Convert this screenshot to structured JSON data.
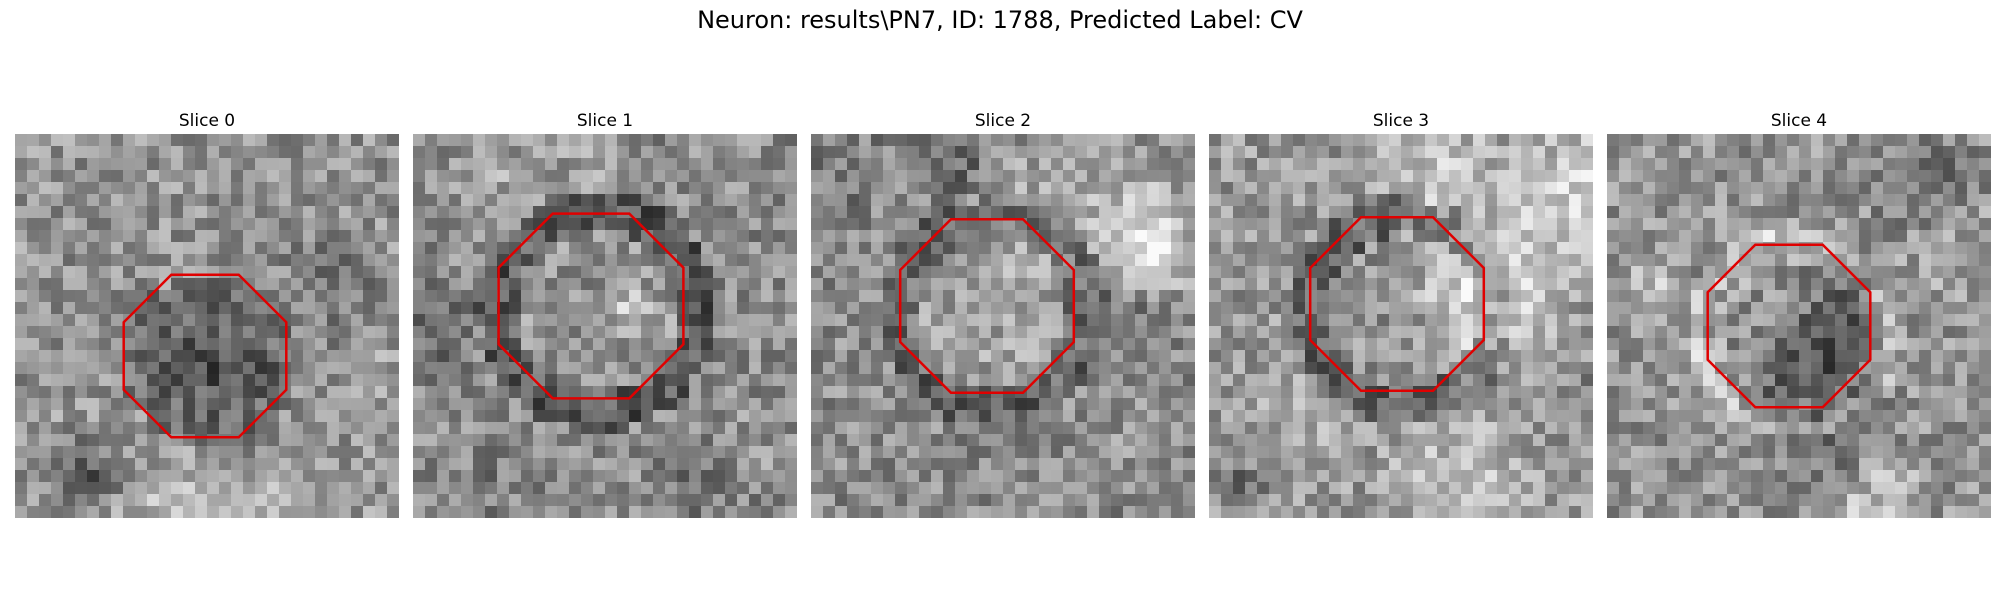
{
  "figure": {
    "title": "Neuron: results\\PN7, ID: 1788, Predicted Label: CV"
  },
  "slices": [
    {
      "title": "Slice 0",
      "seed": 11,
      "base": 0.58,
      "center_dark": 0.22,
      "ring": 0.0
    },
    {
      "title": "Slice 1",
      "seed": 23,
      "base": 0.55,
      "center_dark": -0.05,
      "ring": 0.22
    },
    {
      "title": "Slice 2",
      "seed": 37,
      "base": 0.55,
      "center_dark": -0.1,
      "ring": 0.18
    },
    {
      "title": "Slice 3",
      "seed": 41,
      "base": 0.6,
      "center_dark": 0.02,
      "ring": 0.2
    },
    {
      "title": "Slice 4",
      "seed": 53,
      "base": 0.58,
      "center_dark": 0.28,
      "ring": -0.12
    }
  ],
  "colors": {
    "outline": "#e00000",
    "background": "#ffffff"
  }
}
